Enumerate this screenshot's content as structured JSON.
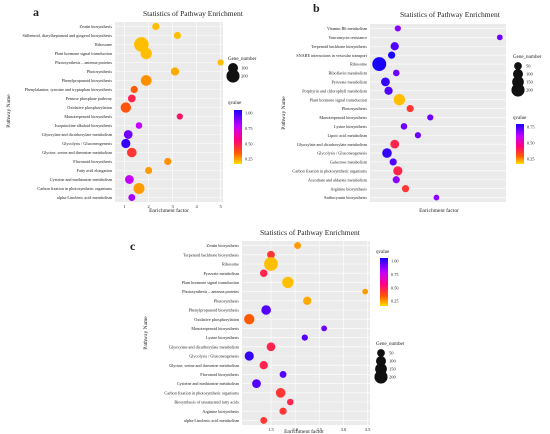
{
  "chart_data": [
    {
      "panel_label": "a",
      "type": "scatter",
      "title": "Statistics of Pathway Enrichment",
      "xlabel": "Enrichment factor",
      "ylabel": "Pathway Name",
      "xticks": [
        "1",
        "2",
        "3",
        "4",
        "5"
      ],
      "xlim": [
        0.6,
        5.1
      ],
      "grid": true,
      "categories": [
        "Zeatin biosynthesis",
        "Stilbenoid, diarylheptanoid and gingerol biosynthesis",
        "Ribosome",
        "Plant hormone signal transduction",
        "Photosynthesis – antenna proteins",
        "Photosynthesis",
        "Phenylpropanoid biosynthesis",
        "Phenylalanine, tyrosine and tryptophan biosynthesis",
        "Pentose phosphate pathway",
        "Oxidative phosphorylation",
        "Monoterpenoid biosynthesis",
        "Isoquinoline alkaloid biosynthesis",
        "Glyoxylate and dicarboxylate metabolism",
        "Glycolysis / Gluconeogenesis",
        "Glycine, serine and threonine metabolism",
        "Flavonoid biosynthesis",
        "Fatty acid elongation",
        "Cysteine and methionine metabolism",
        "Carbon fixation in photosynthetic organisms",
        "alpha-Linolenic acid metabolism"
      ],
      "points": [
        {
          "x": 2.3,
          "size": 40,
          "q": 0.05
        },
        {
          "x": 3.2,
          "size": 40,
          "q": 0.05
        },
        {
          "x": 1.7,
          "size": 260,
          "q": 0.05
        },
        {
          "x": 1.9,
          "size": 140,
          "q": 0.05
        },
        {
          "x": 5.0,
          "size": 25,
          "q": 0.05
        },
        {
          "x": 3.1,
          "size": 60,
          "q": 0.08
        },
        {
          "x": 1.9,
          "size": 120,
          "q": 0.12
        },
        {
          "x": 1.4,
          "size": 40,
          "q": 0.2
        },
        {
          "x": 1.3,
          "size": 50,
          "q": 0.35
        },
        {
          "x": 1.05,
          "size": 110,
          "q": 0.22
        },
        {
          "x": 3.3,
          "size": 25,
          "q": 0.4
        },
        {
          "x": 1.6,
          "size": 30,
          "q": 0.7
        },
        {
          "x": 1.15,
          "size": 70,
          "q": 0.85
        },
        {
          "x": 1.05,
          "size": 80,
          "q": 0.95
        },
        {
          "x": 1.3,
          "size": 90,
          "q": 0.3
        },
        {
          "x": 2.8,
          "size": 40,
          "q": 0.12
        },
        {
          "x": 2.0,
          "size": 40,
          "q": 0.1
        },
        {
          "x": 1.2,
          "size": 70,
          "q": 0.7
        },
        {
          "x": 1.6,
          "size": 130,
          "q": 0.1
        },
        {
          "x": 1.3,
          "size": 35,
          "q": 0.75
        }
      ],
      "size_legend": {
        "title": "Gene_number",
        "values": [
          100,
          200
        ]
      },
      "color_legend": {
        "title": "qvalue",
        "ticks": [
          "1.00",
          "0.75",
          "0.50",
          "0.25"
        ],
        "range": [
          0.0,
          1.0
        ]
      }
    },
    {
      "panel_label": "b",
      "type": "scatter",
      "title": "Statistics of Pathway Enrichment",
      "xlabel": "Enrichment factor",
      "ylabel": "Pathway Name",
      "xticks": [],
      "xlim": [
        0.8,
        5.2
      ],
      "grid": true,
      "categories": [
        "Vitamin B6 metabolism",
        "Vancomycin resistance",
        "Terpenoid backbone biosynthesis",
        "SNARE interactions in vesicular transport",
        "Ribosome",
        "Riboflavin metabolism",
        "Pyruvate metabolism",
        "Porphyrin and chlorophyll metabolism",
        "Plant hormone signal transduction",
        "Photosynthesis",
        "Monoterpenoid biosynthesis",
        "Lysine biosynthesis",
        "Lipoic acid metabolism",
        "Glyoxylate and dicarboxylate metabolism",
        "Glycolysis / Gluconeogenesis",
        "Galactose metabolism",
        "Carbon fixation in photosynthetic organisms",
        "Ascorbate and aldarate metabolism",
        "Arginine biosynthesis",
        "Anthocyanin biosynthesis"
      ],
      "points": [
        {
          "x": 1.7,
          "size": 25,
          "q": 0.8
        },
        {
          "x": 5.0,
          "size": 20,
          "q": 0.85
        },
        {
          "x": 1.6,
          "size": 60,
          "q": 0.9
        },
        {
          "x": 1.5,
          "size": 40,
          "q": 1.0
        },
        {
          "x": 1.1,
          "size": 230,
          "q": 1.0
        },
        {
          "x": 1.65,
          "size": 30,
          "q": 0.85
        },
        {
          "x": 1.3,
          "size": 70,
          "q": 0.95
        },
        {
          "x": 1.4,
          "size": 60,
          "q": 0.9
        },
        {
          "x": 1.75,
          "size": 140,
          "q": 0.05
        },
        {
          "x": 2.1,
          "size": 40,
          "q": 0.3
        },
        {
          "x": 2.75,
          "size": 25,
          "q": 0.85
        },
        {
          "x": 1.9,
          "size": 30,
          "q": 0.85
        },
        {
          "x": 2.35,
          "size": 25,
          "q": 0.85
        },
        {
          "x": 1.6,
          "size": 70,
          "q": 0.35
        },
        {
          "x": 1.35,
          "size": 90,
          "q": 0.95
        },
        {
          "x": 1.55,
          "size": 40,
          "q": 0.9
        },
        {
          "x": 1.7,
          "size": 80,
          "q": 0.35
        },
        {
          "x": 1.65,
          "size": 40,
          "q": 0.8
        },
        {
          "x": 1.95,
          "size": 40,
          "q": 0.3
        },
        {
          "x": 2.95,
          "size": 20,
          "q": 0.8
        }
      ],
      "size_legend": {
        "title": "Gene_number",
        "values": [
          50,
          100,
          150,
          200
        ]
      },
      "color_legend": {
        "title": "qvalue",
        "ticks": [
          "0.75",
          "0.50",
          "0.25"
        ],
        "range": [
          0.0,
          1.0
        ]
      }
    },
    {
      "panel_label": "c",
      "type": "scatter",
      "title": "Statistics of Pathway Enrichment",
      "xlabel": "Enrichment factor",
      "ylabel": "Pathway Name",
      "xticks": [
        "1.5",
        "2.0",
        "2.5",
        "3.0",
        "3.5"
      ],
      "xlim": [
        0.9,
        3.55
      ],
      "grid": true,
      "categories": [
        "Zeatin biosynthesis",
        "Terpenoid backbone biosynthesis",
        "Ribosome",
        "Pyruvate metabolism",
        "Plant hormone signal transduction",
        "Photosynthesis – antenna proteins",
        "Photosynthesis",
        "Phenylpropanoid biosynthesis",
        "Oxidative phosphorylation",
        "Monoterpenoid biosynthesis",
        "Lysine biosynthesis",
        "Glyoxylate and dicarboxylate metabolism",
        "Glycolysis / Gluconeogenesis",
        "Glycine, serine and threonine metabolism",
        "Flavonoid biosynthesis",
        "Cysteine and methionine metabolism",
        "Carbon fixation in photosynthetic organisms",
        "Biosynthesis of unsaturated fatty acids",
        "Arginine biosynthesis",
        "alpha-Linolenic acid metabolism"
      ],
      "points": [
        {
          "x": 2.05,
          "size": 35,
          "q": 0.1
        },
        {
          "x": 1.5,
          "size": 50,
          "q": 0.3
        },
        {
          "x": 1.5,
          "size": 220,
          "q": 0.05
        },
        {
          "x": 1.35,
          "size": 45,
          "q": 0.35
        },
        {
          "x": 1.85,
          "size": 140,
          "q": 0.05
        },
        {
          "x": 3.45,
          "size": 20,
          "q": 0.1
        },
        {
          "x": 2.25,
          "size": 60,
          "q": 0.08
        },
        {
          "x": 1.4,
          "size": 90,
          "q": 0.9
        },
        {
          "x": 1.05,
          "size": 110,
          "q": 0.2
        },
        {
          "x": 2.6,
          "size": 20,
          "q": 0.85
        },
        {
          "x": 2.2,
          "size": 25,
          "q": 0.9
        },
        {
          "x": 1.5,
          "size": 70,
          "q": 0.35
        },
        {
          "x": 1.05,
          "size": 80,
          "q": 0.95
        },
        {
          "x": 1.35,
          "size": 60,
          "q": 0.35
        },
        {
          "x": 1.75,
          "size": 35,
          "q": 0.9
        },
        {
          "x": 1.2,
          "size": 70,
          "q": 0.9
        },
        {
          "x": 1.7,
          "size": 90,
          "q": 0.3
        },
        {
          "x": 1.9,
          "size": 30,
          "q": 0.35
        },
        {
          "x": 1.75,
          "size": 40,
          "q": 0.3
        },
        {
          "x": 1.35,
          "size": 35,
          "q": 0.3
        }
      ],
      "size_legend": {
        "title": "Gene_number",
        "values": [
          50,
          100,
          150,
          200
        ]
      },
      "color_legend": {
        "title": "qvalue",
        "ticks": [
          "1.00",
          "0.75",
          "0.50",
          "0.25"
        ],
        "range": [
          0.0,
          1.0
        ]
      }
    }
  ]
}
